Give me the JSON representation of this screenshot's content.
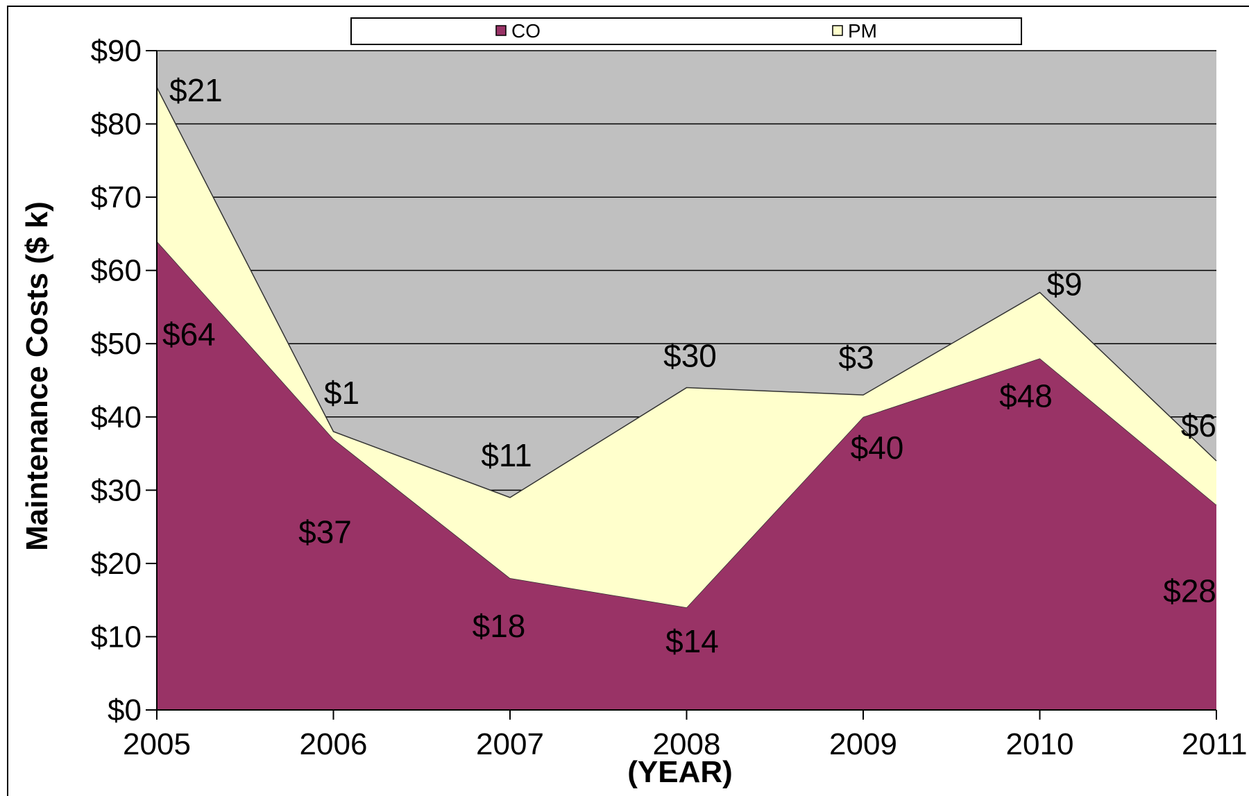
{
  "chart_data": {
    "type": "area",
    "stacked": true,
    "x": [
      "2005",
      "2006",
      "2007",
      "2008",
      "2009",
      "2010",
      "2011"
    ],
    "series": [
      {
        "name": "CO",
        "values": [
          64,
          37,
          18,
          14,
          40,
          48,
          28
        ],
        "labels": [
          "$64",
          "$37",
          "$18",
          "$14",
          "$40",
          "$48",
          "$28"
        ],
        "color": "#993366"
      },
      {
        "name": "PM",
        "values": [
          21,
          1,
          11,
          30,
          3,
          9,
          6
        ],
        "labels": [
          "$21",
          "$1",
          "$11",
          "$30",
          "$3",
          "$9",
          "$6"
        ],
        "color": "#FFFFCC"
      }
    ],
    "ylabel": "Maintenance Costs ($ k)",
    "xlabel": "(YEAR)",
    "ylim": [
      0,
      90
    ],
    "yticks": [
      0,
      10,
      20,
      30,
      40,
      50,
      60,
      70,
      80,
      90
    ],
    "ytick_labels": [
      "$0",
      "$10",
      "$20",
      "$30",
      "$40",
      "$50",
      "$60",
      "$70",
      "$80",
      "$90"
    ],
    "grid": true,
    "legend_position": "top",
    "plot_background": "#C0C0C0"
  }
}
